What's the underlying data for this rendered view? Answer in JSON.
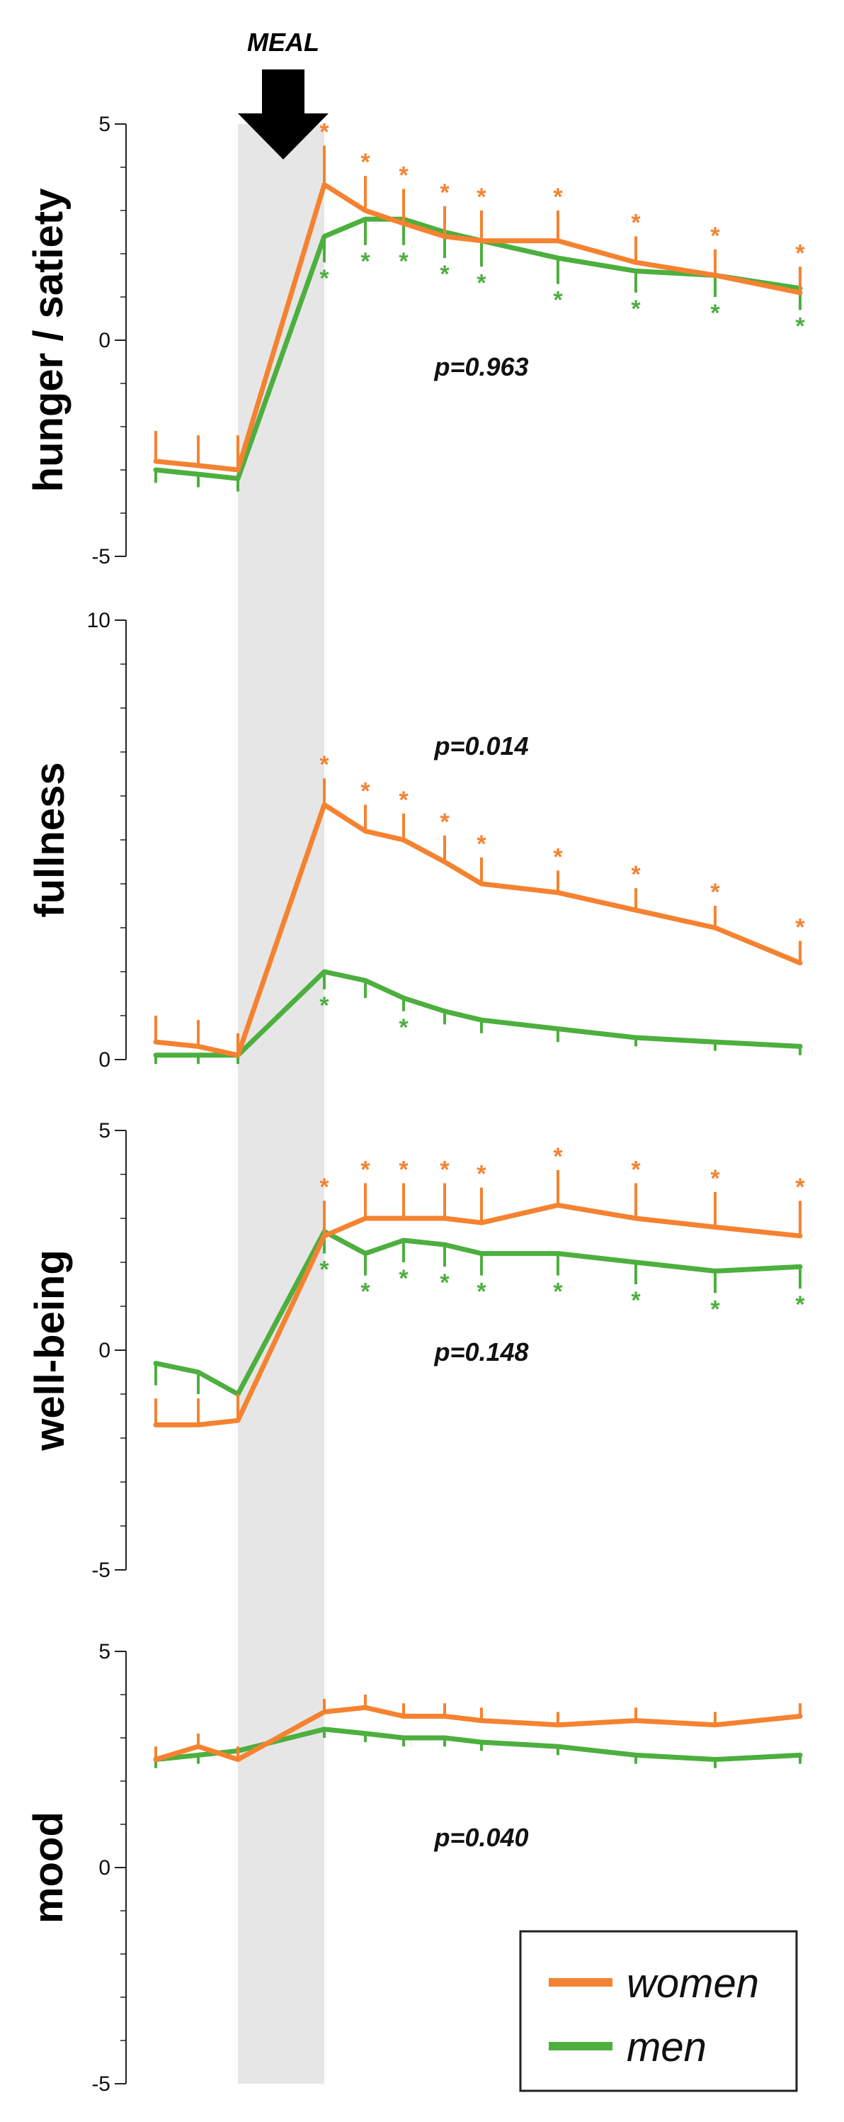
{
  "meal_label": "MEAL",
  "colors": {
    "women": "#F58230",
    "men": "#4CAF3E",
    "shade": "#E6E6E6",
    "axis": "#222222"
  },
  "legend": {
    "women": "women",
    "men": "men"
  },
  "chart_data": [
    {
      "type": "line",
      "title": "",
      "ylabel": "hunger / satiety",
      "p_value": "p=0.963",
      "ylim": [
        -5,
        5
      ],
      "yticks": [
        5,
        0,
        -5
      ],
      "minor_step": 1,
      "series": [
        {
          "name": "women",
          "values": [
            -2.8,
            -2.9,
            -3.0,
            3.6,
            3.0,
            2.7,
            2.4,
            2.3,
            2.3,
            1.8,
            1.5,
            1.1
          ],
          "errors": [
            0.7,
            0.7,
            0.8,
            0.9,
            0.8,
            0.8,
            0.7,
            0.7,
            0.7,
            0.6,
            0.6,
            0.6
          ],
          "stars": [
            false,
            false,
            false,
            true,
            true,
            true,
            true,
            true,
            true,
            true,
            true,
            true
          ]
        },
        {
          "name": "men",
          "values": [
            -3.0,
            -3.1,
            -3.2,
            2.4,
            2.8,
            2.8,
            2.5,
            2.3,
            1.9,
            1.6,
            1.5,
            1.2
          ],
          "errors": [
            0.3,
            0.3,
            0.3,
            0.6,
            0.6,
            0.6,
            0.6,
            0.6,
            0.6,
            0.5,
            0.5,
            0.5
          ],
          "stars": [
            false,
            false,
            false,
            true,
            true,
            true,
            true,
            true,
            true,
            true,
            true,
            true
          ]
        }
      ]
    },
    {
      "type": "line",
      "title": "",
      "ylabel": "fullness",
      "p_value": "p=0.014",
      "ylim": [
        0,
        10
      ],
      "yticks": [
        10,
        0
      ],
      "minor_step": 1,
      "series": [
        {
          "name": "women",
          "values": [
            0.4,
            0.3,
            0.1,
            5.8,
            5.2,
            5.0,
            4.5,
            4.0,
            3.8,
            3.4,
            3.0,
            2.2
          ],
          "errors": [
            0.6,
            0.6,
            0.5,
            0.6,
            0.6,
            0.6,
            0.6,
            0.6,
            0.5,
            0.5,
            0.5,
            0.5
          ],
          "stars": [
            false,
            false,
            false,
            true,
            true,
            true,
            true,
            true,
            true,
            true,
            true,
            true
          ]
        },
        {
          "name": "men",
          "values": [
            0.1,
            0.1,
            0.1,
            2.0,
            1.8,
            1.4,
            1.1,
            0.9,
            0.7,
            0.5,
            0.4,
            0.3
          ],
          "errors": [
            0.2,
            0.2,
            0.2,
            0.4,
            0.4,
            0.3,
            0.3,
            0.3,
            0.3,
            0.2,
            0.2,
            0.2
          ],
          "stars": [
            false,
            false,
            false,
            true,
            false,
            true,
            false,
            false,
            false,
            false,
            false,
            false
          ]
        }
      ]
    },
    {
      "type": "line",
      "title": "",
      "ylabel": "well-being",
      "p_value": "p=0.148",
      "ylim": [
        -5,
        5
      ],
      "yticks": [
        5,
        0,
        -5
      ],
      "minor_step": 1,
      "series": [
        {
          "name": "women",
          "values": [
            -1.7,
            -1.7,
            -1.6,
            2.6,
            3.0,
            3.0,
            3.0,
            2.9,
            3.3,
            3.0,
            2.8,
            2.6
          ],
          "errors": [
            0.6,
            0.6,
            0.6,
            0.8,
            0.8,
            0.8,
            0.8,
            0.8,
            0.8,
            0.8,
            0.8,
            0.8
          ],
          "stars": [
            false,
            false,
            false,
            true,
            true,
            true,
            true,
            true,
            true,
            true,
            true,
            true
          ]
        },
        {
          "name": "men",
          "values": [
            -0.3,
            -0.5,
            -1.0,
            2.7,
            2.2,
            2.5,
            2.4,
            2.2,
            2.2,
            2.0,
            1.8,
            1.9
          ],
          "errors": [
            0.5,
            0.5,
            0.5,
            0.5,
            0.5,
            0.5,
            0.5,
            0.5,
            0.5,
            0.5,
            0.5,
            0.5
          ],
          "stars": [
            false,
            false,
            false,
            true,
            true,
            true,
            true,
            true,
            true,
            true,
            true,
            true
          ]
        }
      ]
    },
    {
      "type": "line",
      "title": "",
      "ylabel": "mood",
      "p_value": "p=0.040",
      "ylim": [
        -5,
        5
      ],
      "yticks": [
        5,
        0,
        -5
      ],
      "minor_step": 1,
      "series": [
        {
          "name": "women",
          "values": [
            2.5,
            2.8,
            2.5,
            3.6,
            3.7,
            3.5,
            3.5,
            3.4,
            3.3,
            3.4,
            3.3,
            3.5
          ],
          "errors": [
            0.3,
            0.3,
            0.3,
            0.3,
            0.3,
            0.3,
            0.3,
            0.3,
            0.3,
            0.3,
            0.3,
            0.3
          ],
          "stars": [
            false,
            false,
            false,
            false,
            false,
            false,
            false,
            false,
            false,
            false,
            false,
            false
          ]
        },
        {
          "name": "men",
          "values": [
            2.5,
            2.6,
            2.7,
            3.2,
            3.1,
            3.0,
            3.0,
            2.9,
            2.8,
            2.6,
            2.5,
            2.6
          ],
          "errors": [
            0.2,
            0.2,
            0.2,
            0.2,
            0.2,
            0.2,
            0.2,
            0.2,
            0.2,
            0.2,
            0.2,
            0.2
          ],
          "stars": [
            false,
            false,
            false,
            false,
            false,
            false,
            false,
            false,
            false,
            false,
            false,
            false
          ]
        }
      ]
    }
  ]
}
